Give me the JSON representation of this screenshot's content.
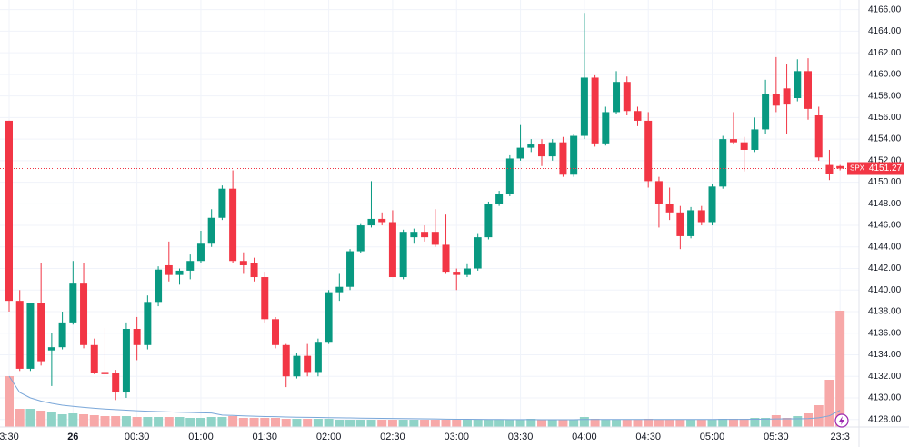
{
  "chart_data": {
    "type": "candlestick",
    "symbol": "SPX",
    "last_price": 4151.27,
    "up_color": "#089981",
    "down_color": "#f23645",
    "volume_up_color": "#8fd3c7",
    "volume_down_color": "#f7a8a8",
    "volume_ma_color": "#7aa7d9",
    "grid": true,
    "categories": [
      "3:30",
      null,
      null,
      null,
      null,
      null,
      "26",
      null,
      null,
      null,
      null,
      null,
      "00:30",
      null,
      null,
      null,
      null,
      null,
      "01:00",
      null,
      null,
      null,
      null,
      null,
      "01:30",
      null,
      null,
      null,
      null,
      null,
      "02:00",
      null,
      null,
      null,
      null,
      null,
      "02:30",
      null,
      null,
      null,
      null,
      null,
      "03:00",
      null,
      null,
      null,
      null,
      null,
      "03:30",
      null,
      null,
      null,
      null,
      null,
      "04:00",
      null,
      null,
      null,
      null,
      null,
      "04:30",
      null,
      null,
      null,
      null,
      null,
      "05:00",
      null,
      null,
      null,
      null,
      null,
      "05:30",
      null,
      null,
      null,
      null,
      null,
      "23:3"
    ],
    "open": [
      4155.7,
      4139.0,
      4132.7,
      4138.8,
      4134.4,
      4134.7,
      4137.0,
      4140.6,
      4134.9,
      4132.4,
      4132.3,
      4130.5,
      4136.4,
      4134.9,
      4138.9,
      4142.3,
      4141.4,
      4141.8,
      4142.7,
      4144.3,
      4146.7,
      4149.4,
      4142.7,
      4142.5,
      4141.2,
      4137.3,
      4134.9,
      4132.0,
      4133.9,
      4132.4,
      4135.2,
      4139.8,
      4140.3,
      4143.6,
      4146.0,
      4146.6,
      4146.3,
      4141.2,
      4144.9,
      4145.4,
      4145.4,
      4144.2,
      4141.7,
      4141.4,
      4142.0,
      4144.9,
      4148.0,
      4148.9,
      4152.2,
      4153.2,
      4153.5,
      4152.4,
      4153.7,
      4150.7,
      4154.3,
      4159.7,
      4153.6,
      4156.5,
      4159.3,
      4156.6,
      4155.7,
      4150.1,
      4148.0,
      4147.2,
      4145.0,
      4147.4,
      4146.3,
      4149.6,
      4154.0,
      4153.7,
      4153.0,
      4154.9,
      4158.2,
      4158.7,
      4157.8,
      4160.3,
      4156.2,
      4151.6,
      4151.5
    ],
    "high": [
      4155.7,
      4140,
      4138.8,
      4142.5,
      4136,
      4138,
      4142.7,
      4142.5,
      4135.5,
      4136.5,
      4132.6,
      4137,
      4137.5,
      4139.5,
      4142.2,
      4144.5,
      4142,
      4143.3,
      4145.5,
      4147.5,
      4149.7,
      4151.1,
      4143.5,
      4143,
      4141.7,
      4137.5,
      4135,
      4134.2,
      4135,
      4135.5,
      4140,
      4141.5,
      4143.8,
      4146.2,
      4150.1,
      4147.2,
      4147.4,
      4145.6,
      4145.7,
      4146,
      4147.5,
      4147,
      4142,
      4142.4,
      4145.2,
      4148.2,
      4149.2,
      4152.5,
      4155.3,
      4154,
      4154,
      4154,
      4154.2,
      4154.5,
      4165.7,
      4160,
      4157,
      4160.3,
      4159.8,
      4157,
      4156.5,
      4150.5,
      4149.5,
      4147.8,
      4147.7,
      4147.8,
      4149.8,
      4154.3,
      4156.5,
      4154.2,
      4156,
      4159.5,
      4161.6,
      4161,
      4161.4,
      4161.5,
      4157,
      4153,
      4151.6
    ],
    "low": [
      4138,
      4132.5,
      4132.5,
      4133,
      4131.1,
      4134.5,
      4136.8,
      4134.6,
      4132.2,
      4132,
      4129.8,
      4130,
      4133.5,
      4134.5,
      4138.5,
      4140.8,
      4140.5,
      4141,
      4142.5,
      4144,
      4146.5,
      4142.5,
      4141.5,
      4140.8,
      4137,
      4134.6,
      4131,
      4131.8,
      4132,
      4132,
      4135,
      4139,
      4140,
      4143.4,
      4145.8,
      4146,
      4141.2,
      4141,
      4144.3,
      4144.5,
      4144,
      4141.5,
      4140,
      4141.2,
      4141.8,
      4144.7,
      4147.8,
      4148.7,
      4152,
      4152.8,
      4151.5,
      4152,
      4150.5,
      4150.5,
      4154,
      4153.3,
      4153.4,
      4156.3,
      4156.2,
      4155.2,
      4149.5,
      4145.8,
      4146.5,
      4143.8,
      4144.8,
      4146,
      4146,
      4149.4,
      4153.5,
      4151,
      4152.8,
      4154.5,
      4156.5,
      4154.5,
      4157.5,
      4155.8,
      4152,
      4150.2,
      4151.1
    ],
    "close": [
      4139.0,
      4132.7,
      4138.8,
      4133.4,
      4134.7,
      4137.0,
      4140.6,
      4134.9,
      4132.3,
      4132.2,
      4130.5,
      4136.4,
      4134.9,
      4138.9,
      4141.9,
      4141.4,
      4141.8,
      4142.7,
      4144.3,
      4146.7,
      4149.4,
      4142.7,
      4142.3,
      4141.2,
      4137.3,
      4134.9,
      4132.0,
      4133.9,
      4132.4,
      4135.2,
      4139.8,
      4140.3,
      4143.6,
      4146.0,
      4146.6,
      4146.3,
      4141.2,
      4145.4,
      4145.4,
      4144.9,
      4144.2,
      4141.7,
      4141.4,
      4142.0,
      4144.9,
      4148.0,
      4148.9,
      4152.2,
      4153.2,
      4153.5,
      4152.4,
      4153.7,
      4150.7,
      4154.3,
      4159.7,
      4153.6,
      4156.5,
      4159.3,
      4156.6,
      4155.7,
      4150.1,
      4148.0,
      4147.2,
      4145.0,
      4147.4,
      4146.3,
      4149.6,
      4154.0,
      4153.7,
      4153.0,
      4154.9,
      4158.2,
      4157.1,
      4157.2,
      4160.3,
      4156.8,
      4152.3,
      4150.8,
      4151.27
    ],
    "volume": [
      56,
      20,
      20,
      18,
      16,
      14,
      15,
      14,
      13,
      12,
      12,
      12,
      11,
      11,
      11,
      11,
      11,
      10,
      10,
      11,
      11,
      12,
      10,
      10,
      10,
      10,
      9,
      9,
      9,
      9,
      9,
      8,
      8,
      8,
      8,
      8,
      8,
      8,
      8,
      8,
      8,
      8,
      8,
      8,
      8,
      8,
      8,
      8,
      8,
      9,
      8,
      8,
      8,
      8,
      11,
      9,
      8,
      8,
      8,
      8,
      9,
      8,
      8,
      8,
      8,
      8,
      8,
      9,
      9,
      9,
      10,
      10,
      13,
      10,
      12,
      15,
      24,
      52,
      128
    ],
    "ylim": [
      4127.3,
      4166.9
    ],
    "yticks": [
      {
        "value": 4128,
        "label": "4128.00"
      },
      {
        "value": 4130,
        "label": "4130.00"
      },
      {
        "value": 4132,
        "label": "4132.00"
      },
      {
        "value": 4134,
        "label": "4134.00"
      },
      {
        "value": 4136,
        "label": "4136.00"
      },
      {
        "value": 4138,
        "label": "4138.00"
      },
      {
        "value": 4140,
        "label": "4140.00"
      },
      {
        "value": 4142,
        "label": "4142.00"
      },
      {
        "value": 4144,
        "label": "4144.00"
      },
      {
        "value": 4146,
        "label": "4146.00"
      },
      {
        "value": 4148,
        "label": "4148.00"
      },
      {
        "value": 4150,
        "label": "4150.00"
      },
      {
        "value": 4152,
        "label": "4152.00"
      },
      {
        "value": 4154,
        "label": "4154.00"
      },
      {
        "value": 4156,
        "label": "4156.00"
      },
      {
        "value": 4158,
        "label": "4158.00"
      },
      {
        "value": 4160,
        "label": "4160.00"
      },
      {
        "value": 4162,
        "label": "4162.00"
      },
      {
        "value": 4164,
        "label": "4164.00"
      },
      {
        "value": 4166,
        "label": "4166.00"
      }
    ]
  }
}
